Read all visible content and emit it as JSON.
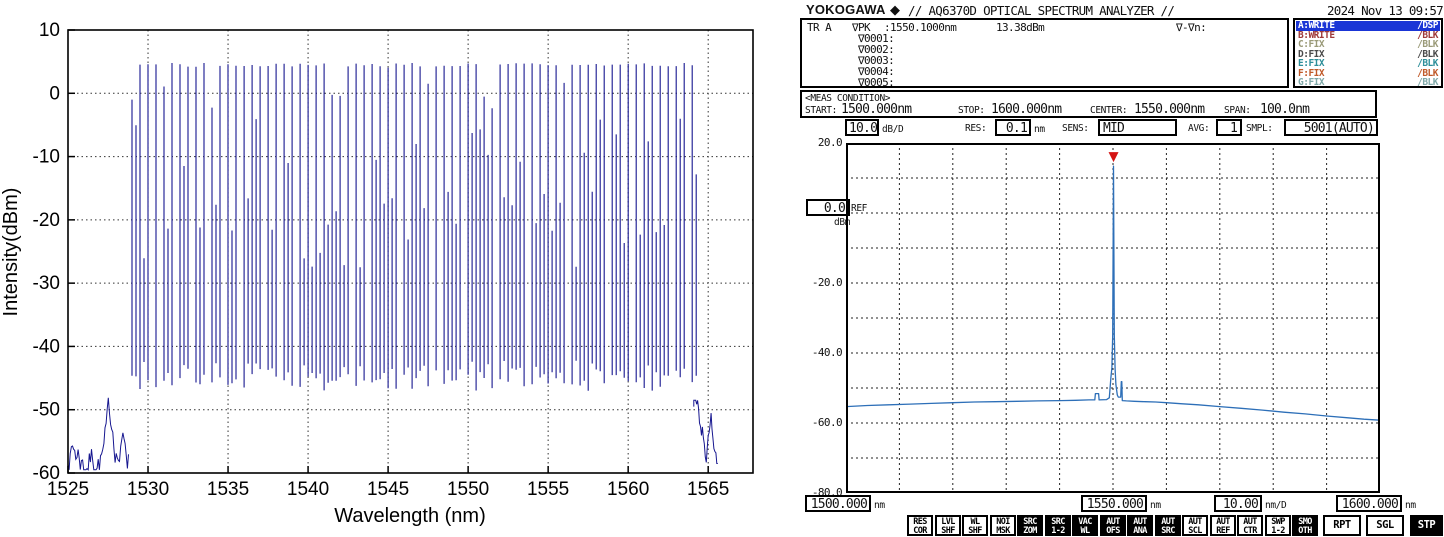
{
  "chart_data": [
    {
      "id": "comb-spectrum",
      "type": "line",
      "title": "",
      "xlabel": "Wavelength (nm)",
      "ylabel": "Intensity(dBm)",
      "xlim": [
        1525,
        1567.8
      ],
      "ylim": [
        -60,
        10
      ],
      "xticks": [
        1525,
        1530,
        1535,
        1540,
        1545,
        1550,
        1555,
        1560,
        1565
      ],
      "yticks": [
        10,
        0,
        -10,
        -20,
        -30,
        -40,
        -50,
        -60
      ],
      "grid": true,
      "legend": "none",
      "line_color": "#16168f",
      "comb": {
        "description": "dense optical frequency comb of vertical spectral lines",
        "start_nm": 1529,
        "end_nm": 1564,
        "spacing_nm": 0.5,
        "peak_envelope_dbm": 4.5,
        "valley_dbm": -45,
        "seed": 7,
        "noise_left": {
          "start_nm": 1525,
          "end_nm": 1528.8,
          "min_dbm": -59.5,
          "max_dbm": -47.5
        },
        "noise_right": {
          "start_nm": 1564.1,
          "end_nm": 1565.65,
          "min_dbm": -58.5,
          "max_dbm": -48.5
        }
      }
    },
    {
      "id": "osa-trace",
      "type": "line",
      "x_start_nm": 1500,
      "x_stop_nm": 1600,
      "ylim": [
        -80,
        20
      ],
      "ref_dbm": 0.0,
      "scale_db_per_div": 10.0,
      "nm_per_div": 10.0,
      "line_color": "#2d6fb8",
      "marker": {
        "x_nm": 1550.1,
        "y_dbm": 13.38,
        "color": "#d41414"
      },
      "points": [
        [
          1500,
          -55.3
        ],
        [
          1504,
          -55.0
        ],
        [
          1508,
          -54.8
        ],
        [
          1512,
          -54.6
        ],
        [
          1516,
          -54.4
        ],
        [
          1520,
          -54.2
        ],
        [
          1524,
          -54.0
        ],
        [
          1528,
          -53.9
        ],
        [
          1532,
          -53.8
        ],
        [
          1536,
          -53.7
        ],
        [
          1540,
          -53.6
        ],
        [
          1543,
          -53.5
        ],
        [
          1545.5,
          -53.4
        ],
        [
          1546.6,
          -53.4
        ],
        [
          1546.7,
          -51.6
        ],
        [
          1547.3,
          -51.6
        ],
        [
          1547.4,
          -53.4
        ],
        [
          1548.8,
          -53.3
        ],
        [
          1549.3,
          -52.8
        ],
        [
          1549.6,
          -47.0
        ],
        [
          1549.8,
          -44.2
        ],
        [
          1549.95,
          -35.0
        ],
        [
          1550.1,
          13.38
        ],
        [
          1550.25,
          -35.0
        ],
        [
          1550.4,
          -44.5
        ],
        [
          1550.55,
          -49.0
        ],
        [
          1550.8,
          -52.0
        ],
        [
          1551.0,
          -52.6
        ],
        [
          1551.45,
          -52.6
        ],
        [
          1551.55,
          -48.2
        ],
        [
          1551.65,
          -48.2
        ],
        [
          1551.75,
          -53.6
        ],
        [
          1552.5,
          -53.7
        ],
        [
          1554,
          -53.8
        ],
        [
          1556,
          -53.9
        ],
        [
          1558,
          -54.0
        ],
        [
          1560,
          -54.2
        ],
        [
          1563,
          -54.5
        ],
        [
          1566,
          -54.8
        ],
        [
          1570,
          -55.3
        ],
        [
          1574,
          -55.8
        ],
        [
          1578,
          -56.3
        ],
        [
          1582,
          -56.9
        ],
        [
          1586,
          -57.4
        ],
        [
          1590,
          -58.0
        ],
        [
          1594,
          -58.5
        ],
        [
          1597,
          -58.9
        ],
        [
          1600,
          -59.2
        ]
      ]
    }
  ],
  "osa_screen": {
    "header": {
      "brand": "YOKOGAWA",
      "diamond": "◆",
      "title": "// AQ6370D OPTICAL SPECTRUM ANALYZER //",
      "datetime": "2024 Nov 13 09:57"
    },
    "marker_info": {
      "tr_label": "TR A",
      "pk_label": "∇PK",
      "pk_wavelength": ":1550.1000nm",
      "pk_power": "13.38dBm",
      "delta_label": "∇-∇n:",
      "rows": [
        "∇0001:",
        "∇0002:",
        "∇0003:",
        "∇0004:",
        "∇0005:"
      ]
    },
    "traces": [
      {
        "label": "A:WRITE",
        "mode": "/DSP",
        "selected": true,
        "color": "#ffffff",
        "bg": "#1a35d6"
      },
      {
        "label": "B:WRITE",
        "mode": "/BLK",
        "selected": false,
        "color": "#a03a3a",
        "bg": ""
      },
      {
        "label": "C:FIX",
        "mode": "/BLK",
        "selected": false,
        "color": "#9a9a78",
        "bg": ""
      },
      {
        "label": "D:FIX",
        "mode": "/BLK",
        "selected": false,
        "color": "#4a4a4a",
        "bg": ""
      },
      {
        "label": "E:FIX",
        "mode": "/BLK",
        "selected": false,
        "color": "#2e8f9a",
        "bg": ""
      },
      {
        "label": "F:FIX",
        "mode": "/BLK",
        "selected": false,
        "color": "#c05a2a",
        "bg": ""
      },
      {
        "label": "G:FIX",
        "mode": "/BLK",
        "selected": false,
        "color": "#7fa8a8",
        "bg": ""
      }
    ],
    "meas_condition": {
      "title": "<MEAS CONDITION>",
      "start_label": "START:",
      "start_value": "1500.000nm",
      "stop_label": "STOP:",
      "stop_value": "1600.000nm",
      "center_label": "CENTER:",
      "center_value": "1550.000nm",
      "span_label": "SPAN:",
      "span_value": "100.0nm"
    },
    "settings": {
      "level_scale_value": "10.0",
      "level_scale_unit": "dB/D",
      "res_label": "RES:",
      "res_value": "0.1",
      "res_unit": "nm",
      "sens_label": "SENS:",
      "sens_value": "MID",
      "avg_label": "AVG:",
      "avg_value": "1",
      "smpl_label": "SMPL:",
      "smpl_value": "5001(AUTO)"
    },
    "y_axis": {
      "ref_label": "REF",
      "ref_value": "0.0",
      "ref_unit": "dBm",
      "labels": [
        "20.0",
        "-20.0",
        "-40.0",
        "-60.0",
        "-80.0"
      ]
    },
    "x_axis": {
      "start_value": "1500.000",
      "start_unit": "nm",
      "center_value": "1550.000",
      "center_unit": "nm",
      "per_div_value": "10.00",
      "per_div_unit": "nm/D",
      "stop_value": "1600.000",
      "stop_unit": "nm"
    },
    "soft_buttons": [
      {
        "line1": "RES",
        "line2": "COR",
        "inverted": false
      },
      {
        "line1": "LVL",
        "line2": "SHF",
        "inverted": false
      },
      {
        "line1": "WL",
        "line2": "SHF",
        "inverted": false
      },
      {
        "line1": "NOI",
        "line2": "MSK",
        "inverted": false
      },
      {
        "line1": "SRC",
        "line2": "ZOM",
        "inverted": true
      },
      {
        "line1": "SRC",
        "line2": "1-2",
        "inverted": true
      },
      {
        "line1": "VAC",
        "line2": "WL",
        "inverted": true
      },
      {
        "line1": "AUT",
        "line2": "OFS",
        "inverted": true
      },
      {
        "line1": "AUT",
        "line2": "ANA",
        "inverted": true
      },
      {
        "line1": "AUT",
        "line2": "SRC",
        "inverted": true
      },
      {
        "line1": "AUT",
        "line2": "SCL",
        "inverted": false
      },
      {
        "line1": "AUT",
        "line2": "REF",
        "inverted": false
      },
      {
        "line1": "AUT",
        "line2": "CTR",
        "inverted": false
      },
      {
        "line1": "SWP",
        "line2": "1-2",
        "inverted": false
      },
      {
        "line1": "SMO",
        "line2": "OTH",
        "inverted": true
      }
    ],
    "run_buttons": [
      {
        "label": "RPT",
        "inverted": false
      },
      {
        "label": "SGL",
        "inverted": false
      },
      {
        "label": "STP",
        "inverted": true
      }
    ]
  }
}
